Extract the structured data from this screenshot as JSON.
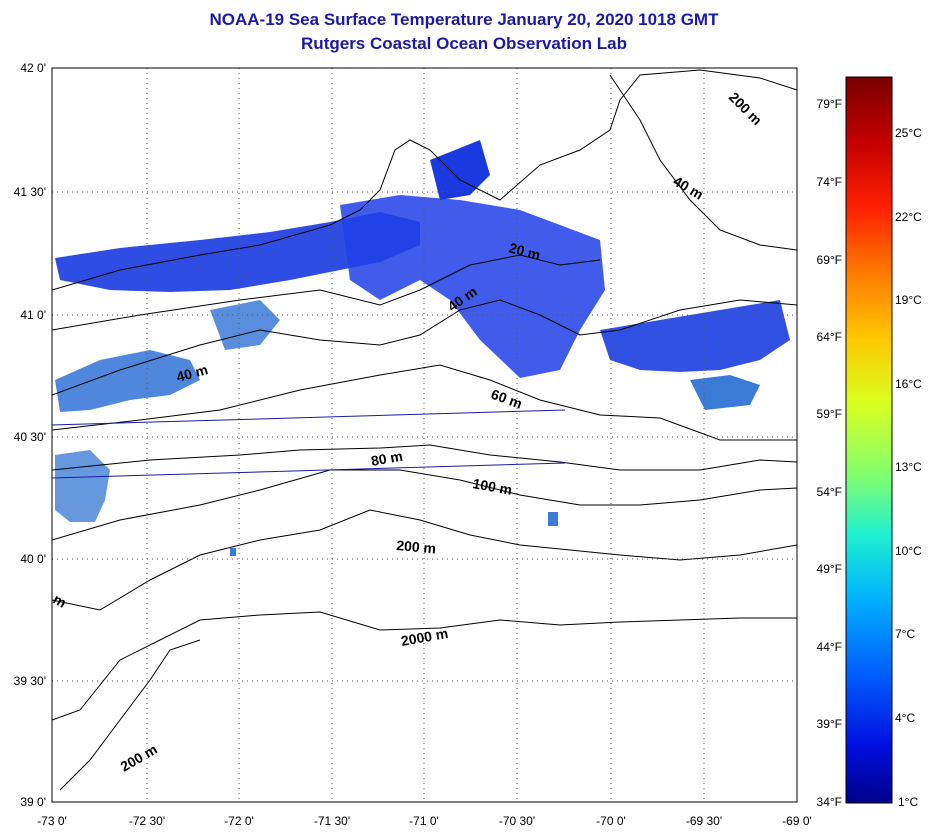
{
  "title": "NOAA-19 Sea Surface Temperature January 20, 2020 1018 GMT",
  "subtitle": "Rutgers Coastal Ocean Observation Lab",
  "map": {
    "lon_range": [
      -73,
      -69
    ],
    "lat_range": [
      39,
      42
    ],
    "lon_ticks": [
      "-73 0'",
      "-72 30'",
      "-72 0'",
      "-71 30'",
      "-71 0'",
      "-70 30'",
      "-70 0'",
      "-69 30'",
      "-69 0'"
    ],
    "lat_ticks": [
      "42 0'",
      "41 30'",
      "41 0'",
      "40 30'",
      "40 0'",
      "39 30'",
      "39 0'"
    ],
    "grid": true
  },
  "colorbar": {
    "celsius_labels": [
      "25°C",
      "22°C",
      "19°C",
      "16°C",
      "13°C",
      "10°C",
      "7°C",
      "4°C",
      "1°C"
    ],
    "fahrenheit_labels": [
      "79°F",
      "74°F",
      "69°F",
      "64°F",
      "59°F",
      "54°F",
      "49°F",
      "44°F",
      "39°F",
      "34°F"
    ],
    "colors": [
      "#7a0000",
      "#c40000",
      "#ff2000",
      "#ff7a00",
      "#ffc800",
      "#d8ff20",
      "#80ff70",
      "#20f0d0",
      "#00b0ff",
      "#0060ff",
      "#0010e0",
      "#00008a"
    ]
  },
  "depth_labels": [
    "200 m",
    "40 m",
    "20 m",
    "40 m",
    "40 m",
    "60 m",
    "80 m",
    "100 m",
    "200 m",
    "2000 m",
    "200 m",
    "m"
  ],
  "colors": {
    "title": "#1a1aa6",
    "sst_blue": "#1a3ae0",
    "sst_light": "#3c7ad8"
  }
}
